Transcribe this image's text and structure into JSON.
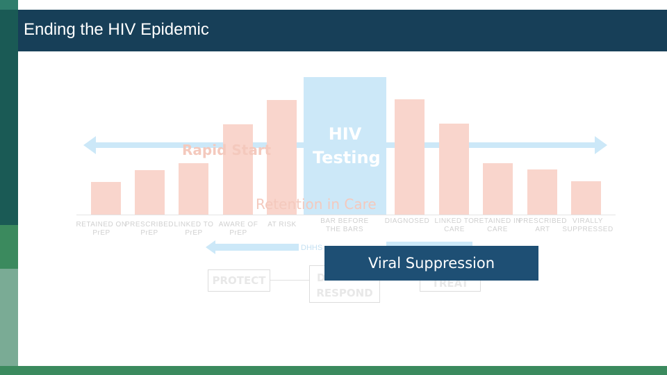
{
  "slide": {
    "title": "Ending the HIV Epidemic",
    "overlay_labels": {
      "rapid_start": "Rapid Start",
      "hiv_testing": "HIV Testing",
      "retention": "Retention in Care"
    },
    "bar_labels": [
      "RETAINED ON PrEP",
      "PRESCRIBED PrEP",
      "LINKED TO PrEP",
      "AWARE OF PrEP",
      "AT RISK",
      "BAR BEFORE THE BARS",
      "DIAGNOSED",
      "LINKED TO CARE",
      "RETAINED IN CARE",
      "PRESCRIBED ART",
      "VIRALLY SUPPRESSED"
    ],
    "dhhs_label": "DHHS",
    "pillars": {
      "protect": "PROTECT",
      "respond": "RESPOND",
      "diagnose_partial": "D",
      "treat_partial": "TREAT"
    },
    "callout": "Viral Suppression"
  },
  "colors": {
    "header": "#173f58",
    "callout": "#1e4f74",
    "bar": "#f9d5cc",
    "highlight": "#cce8f8",
    "stripe_dark": "#1a5a55",
    "stripe_green": "#3b8a5e"
  }
}
